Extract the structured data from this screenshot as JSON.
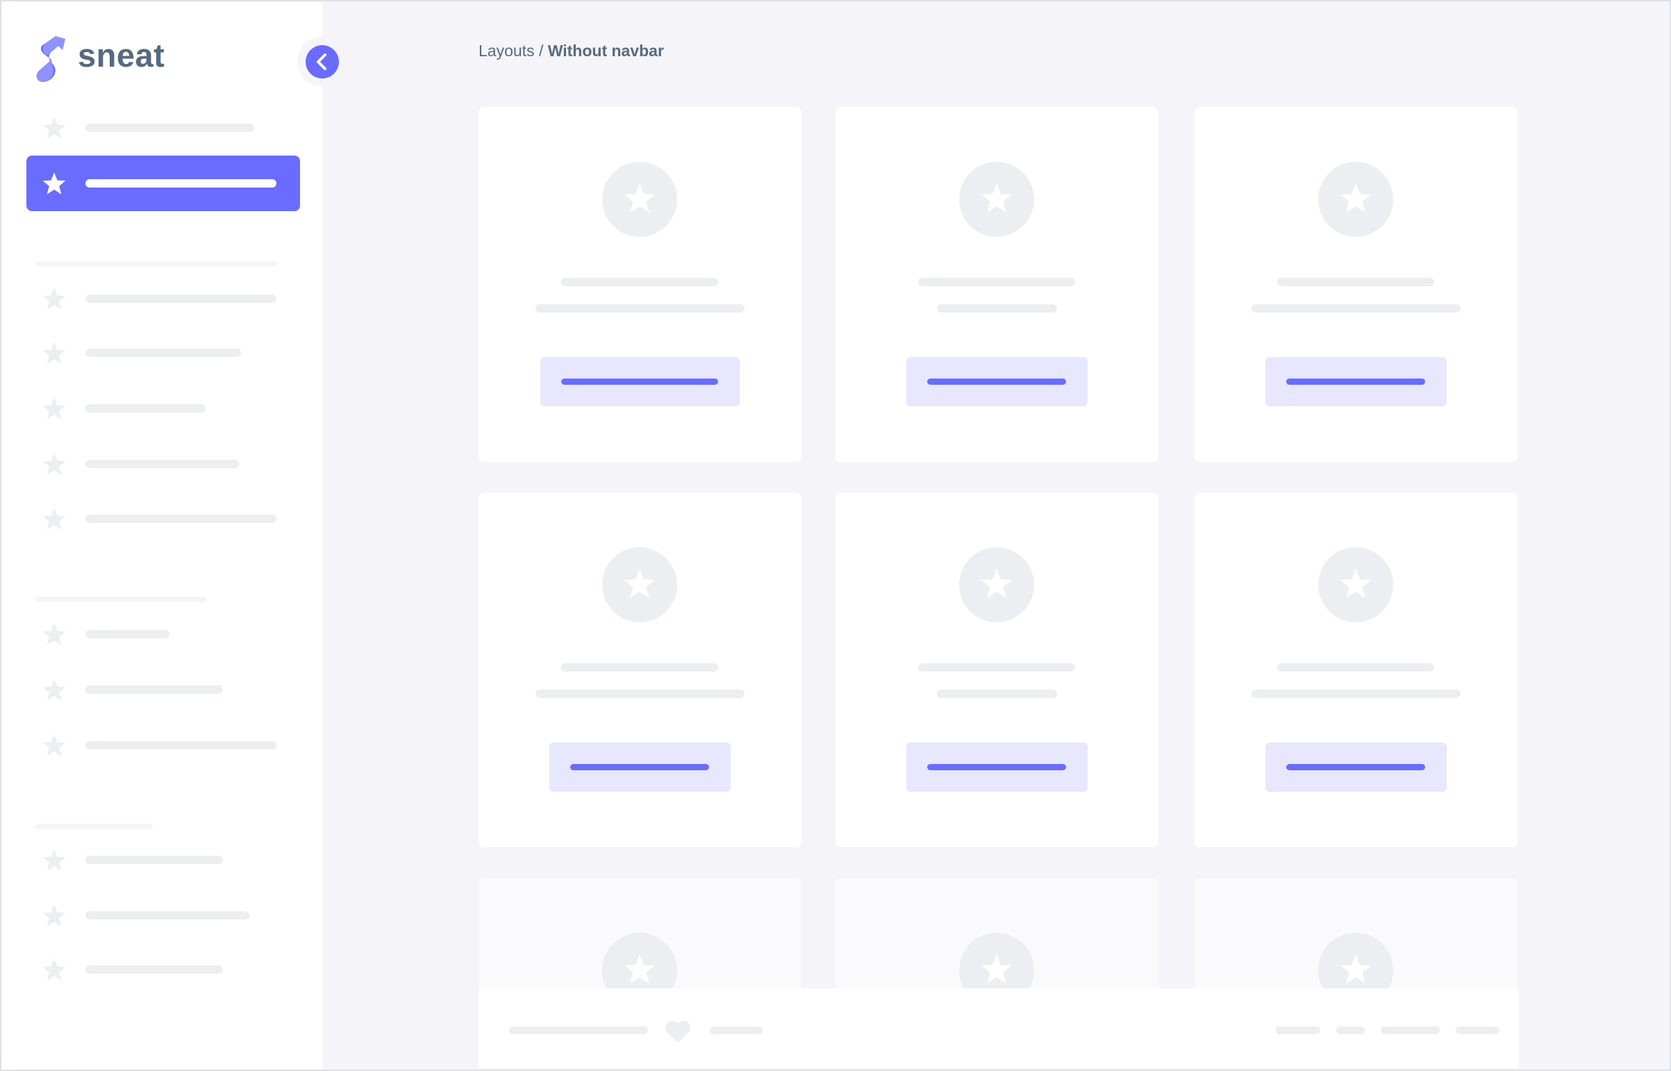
{
  "brand": {
    "name": "sneat",
    "color": "#696cff",
    "text_color": "#566a7f"
  },
  "breadcrumb": {
    "parent": "Layouts",
    "separator": " / ",
    "current": "Without navbar"
  },
  "sidebar": {
    "toggle_icon": "chevron-left-icon",
    "active_index": 1,
    "item_icon": "star-icon"
  },
  "cards": {
    "icon": "star-icon",
    "button_fill": "#e7e7ff"
  },
  "footer": {
    "icon": "heart-icon"
  }
}
